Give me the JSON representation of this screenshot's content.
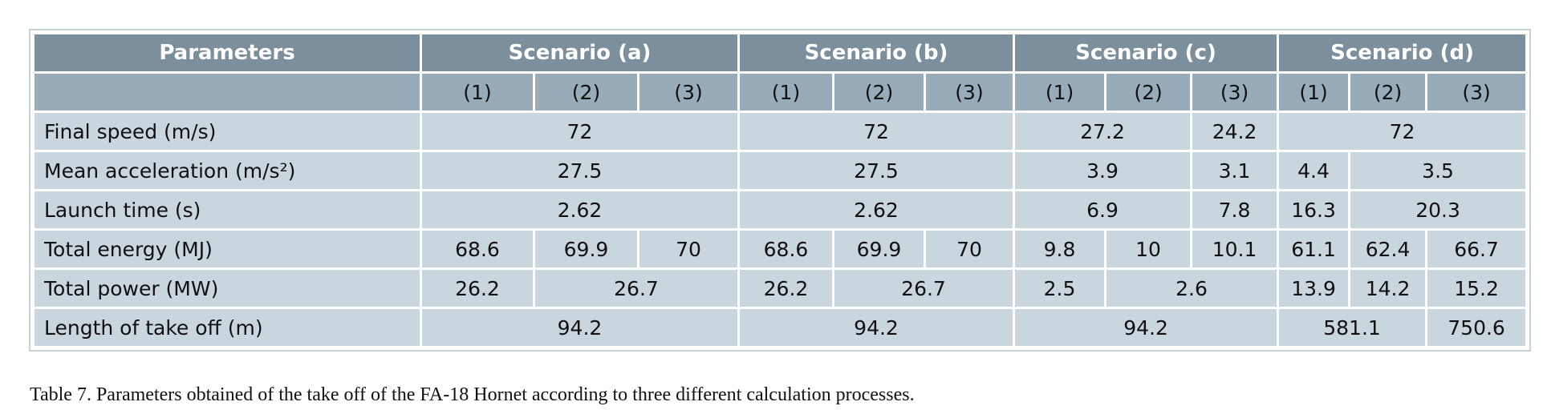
{
  "table": {
    "header": [
      "Parameters",
      "Scenario (a)",
      "Scenario (b)",
      "Scenario (c)",
      "Scenario (d)"
    ],
    "subheader": [
      "(1)",
      "(2)",
      "(3)",
      "(1)",
      "(2)",
      "(3)",
      "(1)",
      "(2)",
      "(3)",
      "(1)",
      "(2)",
      "(3)"
    ],
    "rows": [
      [
        "Final speed (m/s)",
        "72",
        "72",
        "27.2",
        "24.2",
        "72"
      ],
      [
        "Mean acceleration (m/s²)",
        "27.5",
        "27.5",
        "3.9",
        "3.1",
        "4.4",
        "3.5"
      ],
      [
        "Launch time (s)",
        "2.62",
        "2.62",
        "6.9",
        "7.8",
        "16.3",
        "20.3"
      ],
      [
        "Total energy (MJ)",
        "68.6",
        "69.9",
        "70",
        "68.6",
        "69.9",
        "70",
        "9.8",
        "10",
        "10.1",
        "61.1",
        "62.4",
        "66.7"
      ],
      [
        "Total power (MW)",
        "26.2",
        "26.7",
        "26.2",
        "26.7",
        "2.5",
        "2.6",
        "13.9",
        "14.2",
        "15.2"
      ],
      [
        "Length of take off (m)",
        "94.2",
        "94.2",
        "94.2",
        "581.1",
        "750.6"
      ]
    ]
  },
  "caption": "Table 7. Parameters obtained of the take off of the FA-18 Hornet according to three different calculation processes."
}
